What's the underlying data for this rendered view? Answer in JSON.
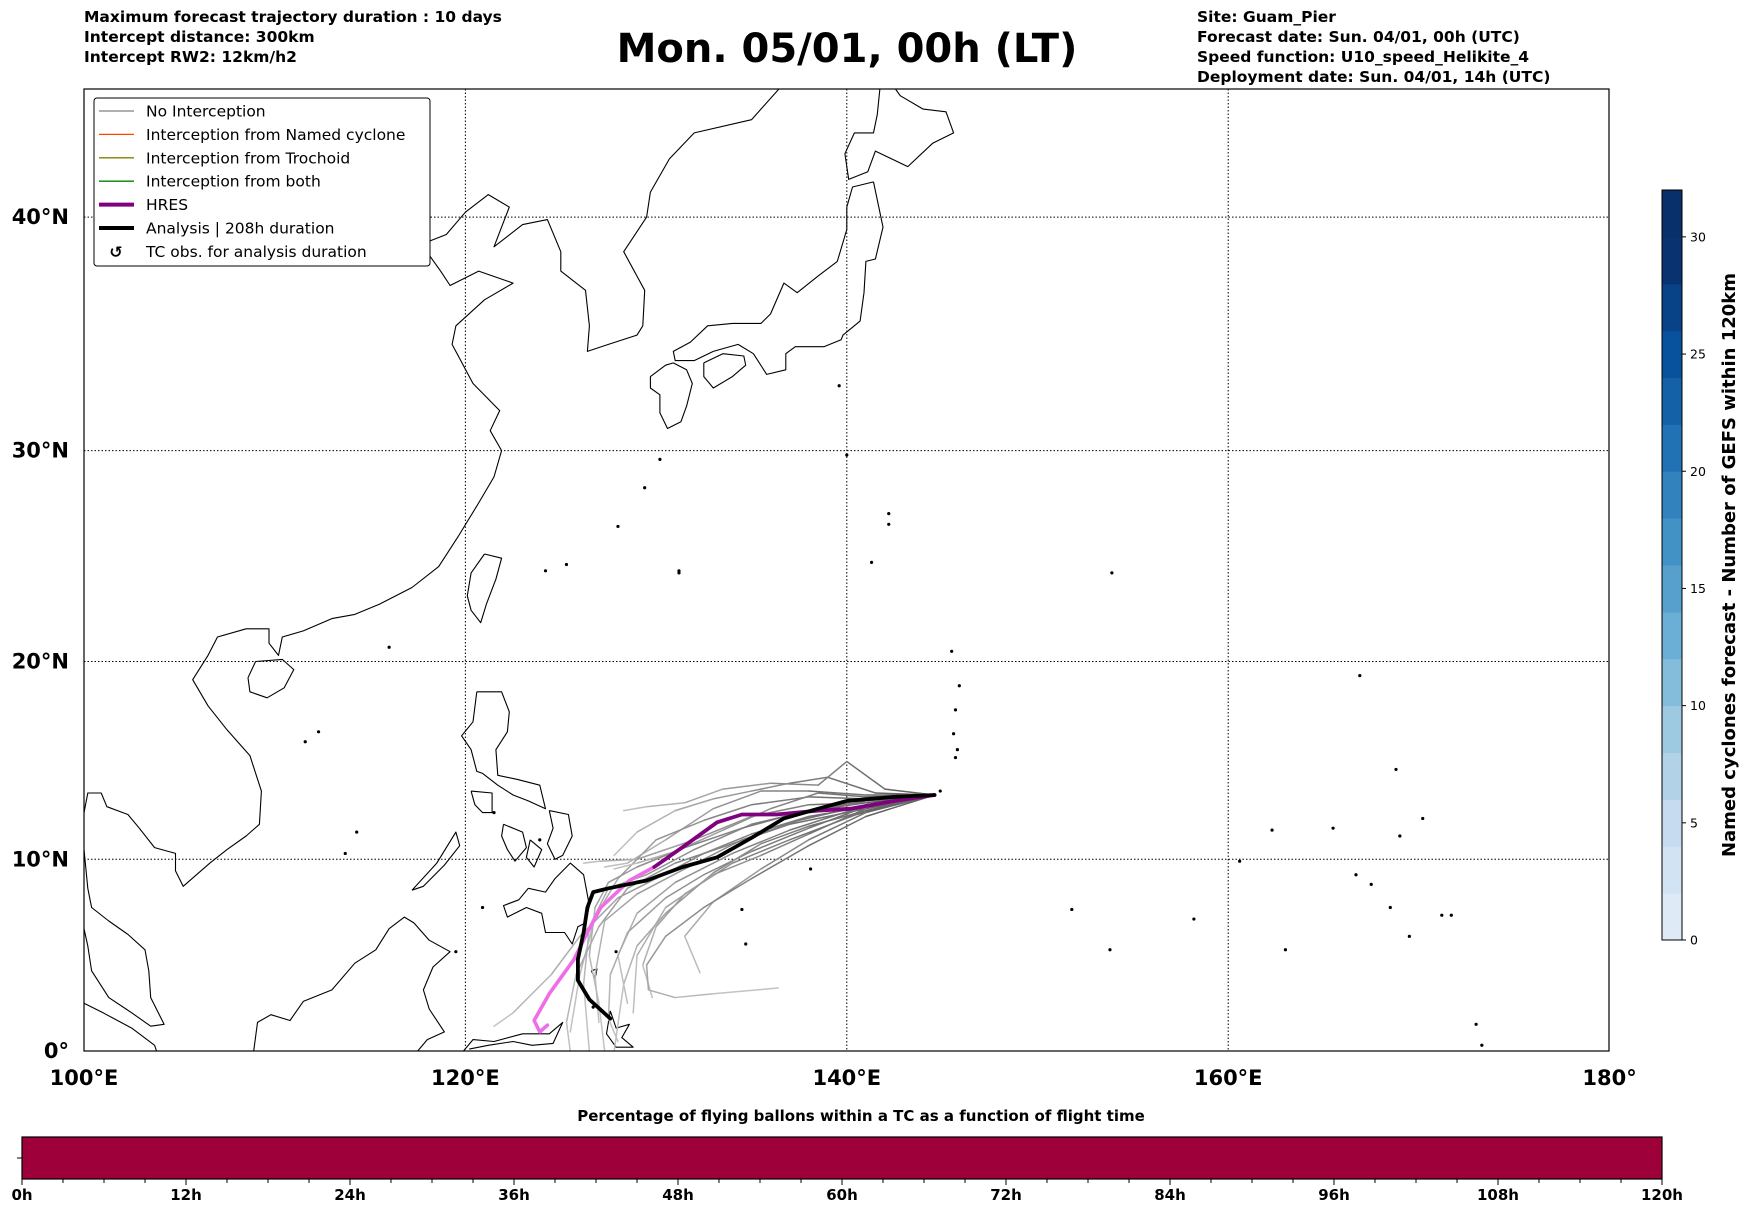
{
  "header": {
    "left": [
      "Maximum forecast trajectory duration : 10 days",
      "Intercept distance: 300km",
      "Intercept RW2: 12km/h2"
    ],
    "title": "Mon. 05/01, 00h (LT)",
    "right": [
      "Site: Guam_Pier",
      "Forecast date: Sun. 04/01, 00h (UTC)",
      "Speed function: U10_speed_Helikite_4",
      "Deployment date: Sun. 04/01, 14h (UTC)"
    ]
  },
  "legend": [
    {
      "label": "No Interception",
      "color": "#808080",
      "kind": "thin"
    },
    {
      "label": "Interception from Named cyclone",
      "color": "#ff4500",
      "kind": "thin"
    },
    {
      "label": "Interception from Trochoid",
      "color": "#808000",
      "kind": "thin"
    },
    {
      "label": "Interception from both",
      "color": "#008000",
      "kind": "thin"
    },
    {
      "label": "HRES",
      "color": "#800080",
      "kind": "thick"
    },
    {
      "label": "Analysis | 208h duration",
      "color": "#000000",
      "kind": "thick"
    },
    {
      "label": "TC obs. for analysis duration",
      "color": "#000000",
      "kind": "symbol"
    }
  ],
  "map": {
    "lon_range": [
      100,
      180
    ],
    "lat_range": [
      0,
      45
    ],
    "lon_ticks": [
      {
        "v": 100,
        "label": "100°E"
      },
      {
        "v": 120,
        "label": "120°E"
      },
      {
        "v": 140,
        "label": "140°E"
      },
      {
        "v": 160,
        "label": "160°E"
      },
      {
        "v": 180,
        "label": "180°"
      }
    ],
    "lat_ticks": [
      {
        "v": 0,
        "label": "0°"
      },
      {
        "v": 10,
        "label": "10°N"
      },
      {
        "v": 20,
        "label": "20°N"
      },
      {
        "v": 30,
        "label": "30°N"
      },
      {
        "v": 40,
        "label": "40°N"
      }
    ],
    "site": {
      "name": "Guam_Pier",
      "lon": 144.6,
      "lat": 13.3
    }
  },
  "map_data": {
    "analysis": [
      [
        144.6,
        13.3
      ],
      [
        142.5,
        13.2
      ],
      [
        140.0,
        13.0
      ],
      [
        138.5,
        12.6
      ],
      [
        136.7,
        12.1
      ],
      [
        135,
        11.1
      ],
      [
        133.2,
        10.1
      ],
      [
        131.4,
        9.6
      ],
      [
        129.5,
        8.9
      ],
      [
        127.5,
        8.5
      ],
      [
        126.7,
        8.3
      ],
      [
        126.4,
        7.5
      ],
      [
        126.2,
        6.2
      ],
      [
        125.9,
        4.8
      ],
      [
        125.9,
        3.7
      ],
      [
        126.5,
        2.7
      ],
      [
        127.6,
        1.7
      ]
    ],
    "hres": [
      [
        144.6,
        13.3
      ],
      [
        142.5,
        13.0
      ],
      [
        140.2,
        12.6
      ],
      [
        138.5,
        12.5
      ],
      [
        136.3,
        12.3
      ],
      [
        134.5,
        12.3
      ],
      [
        133.2,
        11.9
      ],
      [
        131.5,
        10.7
      ],
      [
        129.9,
        9.6
      ]
    ],
    "hres_tail": [
      [
        129.9,
        9.6
      ],
      [
        128.6,
        8.9
      ],
      [
        127.1,
        7.5
      ],
      [
        126.4,
        6.2
      ],
      [
        125.7,
        4.8
      ],
      [
        124.4,
        3.0
      ],
      [
        123.6,
        1.6
      ],
      [
        123.9,
        1.0
      ],
      [
        124.3,
        1.35
      ]
    ],
    "ensemble": [
      [
        [
          144.6,
          13.3
        ],
        [
          142,
          13.6
        ],
        [
          140,
          15.0
        ],
        [
          138.5,
          13.8
        ],
        [
          136,
          13.9
        ],
        [
          133.5,
          13.6
        ],
        [
          131.5,
          12.9
        ],
        [
          129.5,
          12.7
        ],
        [
          128.3,
          12.5
        ]
      ],
      [
        [
          144.6,
          13.3
        ],
        [
          141,
          13.3
        ],
        [
          138,
          13.5
        ],
        [
          135.5,
          13.5
        ],
        [
          133,
          12.6
        ],
        [
          130.5,
          11
        ],
        [
          128.5,
          9.8
        ],
        [
          127.3,
          9.6
        ]
      ],
      [
        [
          144.6,
          13.3
        ],
        [
          141,
          13
        ],
        [
          138,
          12.5
        ],
        [
          135,
          11.8
        ],
        [
          132,
          10.5
        ],
        [
          129.5,
          9.2
        ],
        [
          127.5,
          8.5
        ],
        [
          126.5,
          6.5
        ],
        [
          126.2,
          3.5
        ],
        [
          126.5,
          0
        ]
      ],
      [
        [
          144.6,
          13.3
        ],
        [
          141,
          12.8
        ],
        [
          137.5,
          12
        ],
        [
          134.5,
          11
        ],
        [
          131.5,
          9.5
        ],
        [
          129,
          8.2
        ],
        [
          127.3,
          6.8
        ],
        [
          126.8,
          4
        ],
        [
          127,
          1.5
        ]
      ],
      [
        [
          144.6,
          13.3
        ],
        [
          140.5,
          12.6
        ],
        [
          137,
          11.5
        ],
        [
          134,
          10.3
        ],
        [
          131,
          8.8
        ],
        [
          129,
          7.2
        ],
        [
          128,
          5
        ],
        [
          128.5,
          2.5
        ]
      ],
      [
        [
          144.6,
          13.3
        ],
        [
          140.5,
          12.3
        ],
        [
          137,
          11
        ],
        [
          134,
          9.8
        ],
        [
          131.5,
          8.2
        ],
        [
          130,
          6.5
        ],
        [
          129.3,
          4.5
        ],
        [
          129.8,
          2.8
        ]
      ],
      [
        [
          144.6,
          13.3
        ],
        [
          141,
          12.4
        ],
        [
          138,
          11
        ],
        [
          135.5,
          9.5
        ],
        [
          133,
          7.8
        ],
        [
          131.5,
          6
        ],
        [
          132.3,
          4.1
        ]
      ],
      [
        [
          144.6,
          13.3
        ],
        [
          141,
          12.2
        ],
        [
          138,
          10.7
        ],
        [
          135,
          9
        ],
        [
          132.5,
          7.5
        ],
        [
          130.5,
          6
        ],
        [
          129.5,
          4.5
        ],
        [
          129.6,
          3.2
        ],
        [
          131,
          2.8
        ],
        [
          133,
          3.0
        ],
        [
          136.4,
          3.3
        ]
      ],
      [
        [
          144.6,
          13.3
        ],
        [
          141,
          12.9
        ],
        [
          138,
          12.8
        ],
        [
          135,
          12.2
        ],
        [
          132,
          11
        ],
        [
          129,
          10
        ],
        [
          127,
          9.9
        ],
        [
          126.2,
          9.8
        ]
      ],
      [
        [
          144.6,
          13.3
        ],
        [
          141,
          13.1
        ],
        [
          138,
          13.2
        ],
        [
          135,
          12.8
        ],
        [
          132.5,
          12
        ],
        [
          130,
          11
        ],
        [
          128,
          9
        ],
        [
          126.8,
          7
        ],
        [
          126,
          4
        ],
        [
          125.5,
          1
        ]
      ],
      [
        [
          144.6,
          13.3
        ],
        [
          141,
          12.7
        ],
        [
          138,
          12.2
        ],
        [
          135,
          11.3
        ],
        [
          132.5,
          10.3
        ],
        [
          130,
          9
        ],
        [
          128,
          8
        ],
        [
          126,
          6
        ],
        [
          124.5,
          4
        ],
        [
          122.5,
          2
        ],
        [
          121.5,
          1.3
        ]
      ],
      [
        [
          144.6,
          13.3
        ],
        [
          140.5,
          12.5
        ],
        [
          137,
          11.8
        ],
        [
          134,
          10.8
        ],
        [
          131,
          9.8
        ],
        [
          128.5,
          8.5
        ],
        [
          127,
          6.5
        ],
        [
          125.8,
          4
        ],
        [
          125.3,
          1.5
        ],
        [
          125.5,
          0
        ]
      ],
      [
        [
          144.6,
          13.3
        ],
        [
          141,
          13.2
        ],
        [
          138.5,
          13.4
        ],
        [
          136,
          12.6
        ],
        [
          133.5,
          11.5
        ],
        [
          131,
          10.4
        ],
        [
          129,
          9.8
        ],
        [
          127.8,
          9.5
        ]
      ],
      [
        [
          144.6,
          13.3
        ],
        [
          141,
          12.7
        ],
        [
          138,
          11.6
        ],
        [
          135,
          10.4
        ],
        [
          132.5,
          9.2
        ],
        [
          130.5,
          8
        ],
        [
          128.5,
          6.2
        ],
        [
          127.6,
          4
        ],
        [
          127.5,
          1.7
        ],
        [
          128,
          0.5
        ]
      ],
      [
        [
          144.6,
          13.3
        ],
        [
          141,
          12.6
        ],
        [
          138,
          11.3
        ],
        [
          135.5,
          10.2
        ],
        [
          133,
          9.2
        ],
        [
          130.5,
          7.5
        ],
        [
          129,
          5
        ],
        [
          128.8,
          2
        ]
      ],
      [
        [
          144.6,
          13.3
        ],
        [
          141.5,
          13.4
        ],
        [
          139,
          14.2
        ],
        [
          137,
          13.9
        ],
        [
          135,
          13.5
        ],
        [
          133,
          13.1
        ],
        [
          131,
          12.5
        ],
        [
          129,
          11.4
        ],
        [
          127.8,
          10.2
        ]
      ],
      [
        [
          144.6,
          13.3
        ],
        [
          141,
          12.9
        ],
        [
          137.5,
          12.4
        ],
        [
          134.5,
          11.6
        ],
        [
          131.5,
          10.6
        ],
        [
          129,
          9.6
        ],
        [
          127.5,
          8.8
        ],
        [
          126.8,
          7.5
        ],
        [
          126.5,
          5
        ],
        [
          127,
          2.5
        ],
        [
          127.3,
          0
        ]
      ],
      [
        [
          144.6,
          13.3
        ],
        [
          141,
          12.5
        ],
        [
          138,
          11.7
        ],
        [
          135.5,
          10.8
        ],
        [
          133,
          9.3
        ],
        [
          130.5,
          7.2
        ],
        [
          129,
          5.5
        ],
        [
          128.3,
          3.5
        ],
        [
          127.8,
          0
        ]
      ]
    ]
  },
  "colorbar": {
    "label": "Named cyclones forecast - Number of GEFS within 120km",
    "range": [
      0,
      32
    ],
    "ticks": [
      "0",
      "5",
      "10",
      "15",
      "20",
      "25",
      "30"
    ],
    "tick_values": [
      0,
      5,
      10,
      15,
      20,
      25,
      30
    ],
    "colors": [
      "#deebf7",
      "#d2e3f3",
      "#c6dbef",
      "#b2d2e8",
      "#9ecae1",
      "#84bcdb",
      "#6baed6",
      "#57a0ce",
      "#4292c6",
      "#3282be",
      "#2171b5",
      "#1461a8",
      "#08519c",
      "#084287",
      "#083370",
      "#08306b"
    ]
  },
  "timebar": {
    "title": "Percentage of flying ballons within a TC as a function of flight time",
    "fill_color": "#9e003a",
    "ticks": [
      "0h",
      "12h",
      "24h",
      "36h",
      "48h",
      "60h",
      "72h",
      "84h",
      "96h",
      "108h",
      "120h"
    ],
    "max_hours": 120
  }
}
